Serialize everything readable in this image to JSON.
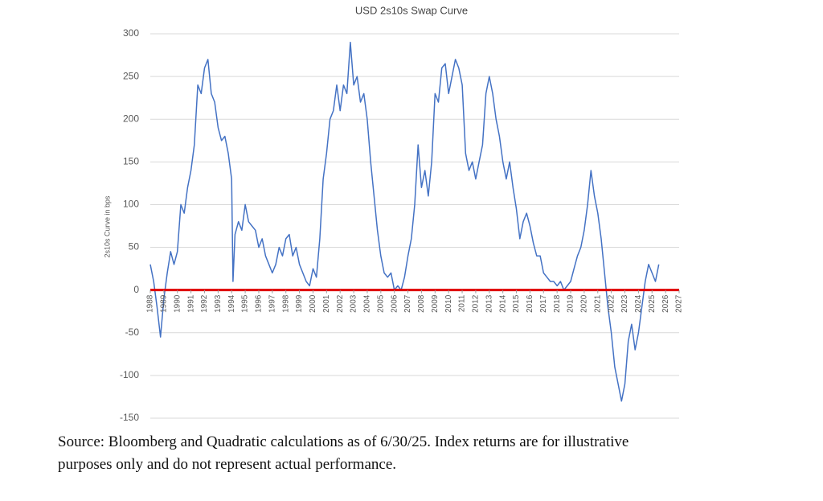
{
  "chart_data": {
    "type": "line",
    "title": "USD 2s10s Swap Curve",
    "y_label": "2s10s Curve in bps",
    "caption": "Source: Bloomberg and Quadratic calculations as of 6/30/25. Index returns are for illustrative purposes only and do not represent actual performance.",
    "x": [
      1988.0,
      1988.25,
      1988.5,
      1988.75,
      1989.0,
      1989.25,
      1989.5,
      1989.75,
      1990.0,
      1990.25,
      1990.5,
      1990.75,
      1991.0,
      1991.25,
      1991.5,
      1991.75,
      1992.0,
      1992.25,
      1992.5,
      1992.75,
      1993.0,
      1993.25,
      1993.5,
      1993.75,
      1994.0,
      1994.1,
      1994.25,
      1994.5,
      1994.75,
      1995.0,
      1995.25,
      1995.5,
      1995.75,
      1996.0,
      1996.25,
      1996.5,
      1996.75,
      1997.0,
      1997.25,
      1997.5,
      1997.75,
      1998.0,
      1998.25,
      1998.5,
      1998.75,
      1999.0,
      1999.25,
      1999.5,
      1999.75,
      2000.0,
      2000.25,
      2000.5,
      2000.75,
      2001.0,
      2001.25,
      2001.5,
      2001.75,
      2002.0,
      2002.25,
      2002.5,
      2002.75,
      2003.0,
      2003.25,
      2003.5,
      2003.75,
      2004.0,
      2004.25,
      2004.5,
      2004.75,
      2005.0,
      2005.25,
      2005.5,
      2005.75,
      2006.0,
      2006.25,
      2006.5,
      2006.75,
      2007.0,
      2007.25,
      2007.5,
      2007.75,
      2008.0,
      2008.25,
      2008.5,
      2008.75,
      2009.0,
      2009.25,
      2009.5,
      2009.75,
      2010.0,
      2010.25,
      2010.5,
      2010.75,
      2011.0,
      2011.25,
      2011.5,
      2011.75,
      2012.0,
      2012.25,
      2012.5,
      2012.75,
      2013.0,
      2013.25,
      2013.5,
      2013.75,
      2014.0,
      2014.25,
      2014.5,
      2014.75,
      2015.0,
      2015.25,
      2015.5,
      2015.75,
      2016.0,
      2016.25,
      2016.5,
      2016.75,
      2017.0,
      2017.25,
      2017.5,
      2017.75,
      2018.0,
      2018.25,
      2018.5,
      2018.75,
      2019.0,
      2019.25,
      2019.5,
      2019.75,
      2020.0,
      2020.25,
      2020.5,
      2020.75,
      2021.0,
      2021.25,
      2021.5,
      2021.75,
      2022.0,
      2022.25,
      2022.5,
      2022.75,
      2023.0,
      2023.25,
      2023.5,
      2023.75,
      2024.0,
      2024.25,
      2024.5,
      2024.75,
      2025.0,
      2025.25,
      2025.5
    ],
    "series": [
      {
        "name": "USD 2s10s",
        "color": "#4472c4",
        "values": [
          30,
          10,
          -20,
          -55,
          -10,
          20,
          45,
          30,
          45,
          100,
          90,
          120,
          140,
          170,
          240,
          230,
          260,
          270,
          230,
          220,
          190,
          175,
          180,
          160,
          130,
          10,
          65,
          80,
          70,
          100,
          80,
          75,
          70,
          50,
          60,
          40,
          30,
          20,
          30,
          50,
          40,
          60,
          65,
          40,
          50,
          30,
          20,
          10,
          5,
          25,
          15,
          60,
          130,
          160,
          200,
          210,
          240,
          210,
          240,
          230,
          290,
          240,
          250,
          220,
          230,
          200,
          150,
          110,
          70,
          40,
          20,
          15,
          20,
          0,
          5,
          0,
          15,
          40,
          60,
          100,
          170,
          120,
          140,
          110,
          150,
          230,
          220,
          260,
          265,
          230,
          250,
          270,
          260,
          240,
          160,
          140,
          150,
          130,
          150,
          170,
          230,
          250,
          230,
          200,
          180,
          150,
          130,
          150,
          120,
          95,
          60,
          80,
          90,
          75,
          55,
          40,
          40,
          20,
          15,
          10,
          10,
          5,
          10,
          0,
          5,
          10,
          25,
          40,
          50,
          70,
          100,
          140,
          110,
          90,
          60,
          20,
          -20,
          -50,
          -90,
          -110,
          -130,
          -110,
          -60,
          -40,
          -70,
          -50,
          -20,
          10,
          30,
          20,
          10,
          30
        ]
      }
    ],
    "reference_line": {
      "value": 0,
      "color": "#e00000"
    },
    "xlim": [
      1988,
      2027
    ],
    "xticks": [
      1988,
      1989,
      1990,
      1991,
      1992,
      1993,
      1994,
      1995,
      1996,
      1997,
      1998,
      1999,
      2000,
      2001,
      2002,
      2003,
      2004,
      2005,
      2006,
      2007,
      2008,
      2009,
      2010,
      2011,
      2012,
      2013,
      2014,
      2015,
      2016,
      2017,
      2018,
      2019,
      2020,
      2021,
      2022,
      2023,
      2024,
      2025,
      2026,
      2027
    ],
    "ylim": [
      -150,
      300
    ],
    "yticks": [
      -150,
      -100,
      -50,
      0,
      50,
      100,
      150,
      200,
      250,
      300
    ],
    "grid": true
  }
}
